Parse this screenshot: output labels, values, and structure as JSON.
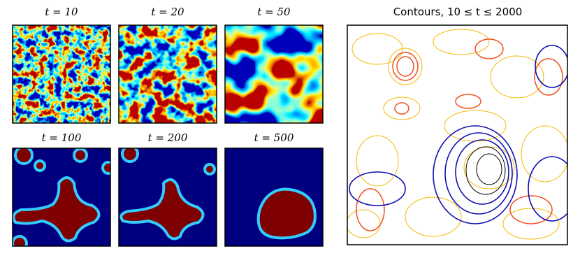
{
  "panels": [
    {
      "title": "t = 10"
    },
    {
      "title": "t = 20"
    },
    {
      "title": "t = 50"
    },
    {
      "title": "t = 100"
    },
    {
      "title": "t = 200"
    },
    {
      "title": "t = 500"
    }
  ],
  "contours": {
    "title": "Contours, 10 ≤ t ≤ 2000"
  }
}
